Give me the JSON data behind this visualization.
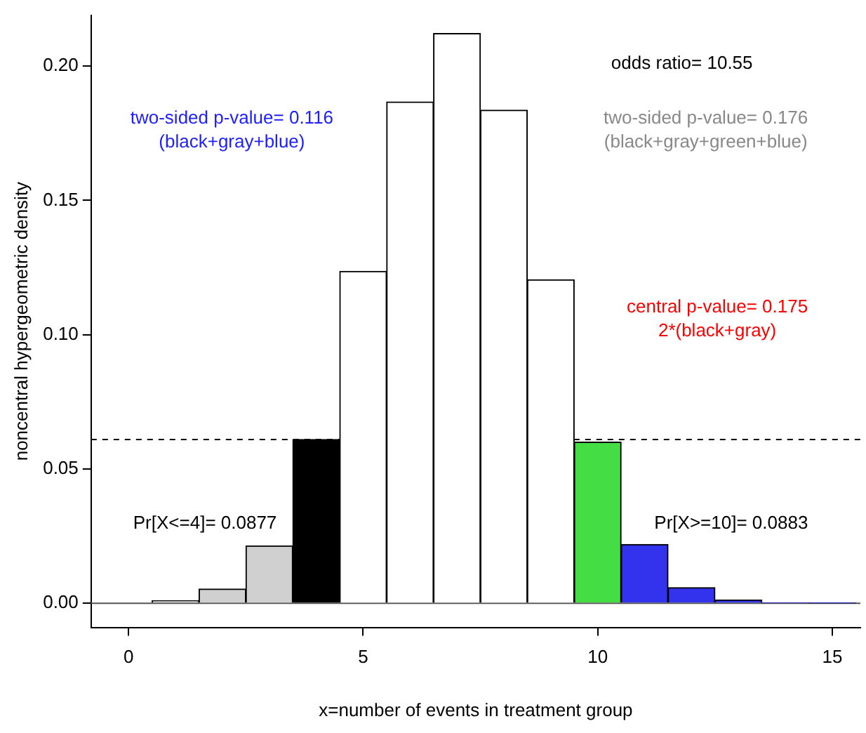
{
  "chart_data": {
    "type": "bar",
    "xlabel": "x=number of events in treatment group",
    "ylabel": "noncentral hypergeometric density",
    "x": [
      1,
      2,
      3,
      4,
      5,
      6,
      7,
      8,
      9,
      10,
      11,
      12,
      13,
      14,
      15
    ],
    "values": [
      0.0009,
      0.0053,
      0.0214,
      0.061,
      0.1236,
      0.1867,
      0.2122,
      0.1836,
      0.1205,
      0.06,
      0.0219,
      0.0058,
      0.0012,
      0.0002,
      0.0001
    ],
    "colors": [
      "#d0d0d0",
      "#d0d0d0",
      "#d0d0d0",
      "#000000",
      "#ffffff",
      "#ffffff",
      "#ffffff",
      "#ffffff",
      "#ffffff",
      "#44dd44",
      "#3333ee",
      "#3333ee",
      "#3333ee",
      "#3333ee",
      "#3333ee"
    ],
    "xlim": [
      -0.8,
      15.6
    ],
    "xticks": [
      0,
      5,
      10,
      15
    ],
    "ylim": [
      -0.009,
      0.219
    ],
    "yticks": [
      {
        "value": 0,
        "label": "0.00"
      },
      {
        "value": 0.05,
        "label": "0.05"
      },
      {
        "value": 0.1,
        "label": "0.10"
      },
      {
        "value": 0.15,
        "label": "0.15"
      },
      {
        "value": 0.2,
        "label": "0.20"
      }
    ],
    "grid": false,
    "legend": false,
    "ref_lines": [
      {
        "axis": "y",
        "value": 0,
        "color": "#555555",
        "line_style": "solid"
      },
      {
        "axis": "y",
        "value": 0.061,
        "color": "#000000",
        "line_style": "dashed"
      }
    ],
    "annotations": [
      "odds ratio= 10.55",
      "two-sided p-value= 0.116\n(black+gray+blue)",
      "two-sided p-value= 0.176\n(black+gray+green+blue)",
      "central p-value= 0.175\n2*(black+gray)",
      "Pr[X<=4]= 0.0877",
      "Pr[X>=10]= 0.0883"
    ]
  }
}
